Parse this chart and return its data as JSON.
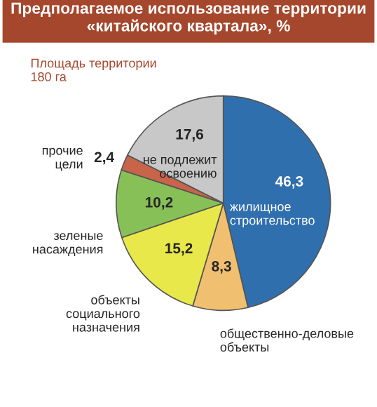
{
  "chart_data": {
    "type": "pie",
    "title": "Предполагаемое использование территории «китайского квартала», %",
    "categories": [
      "жилищное строительство",
      "общественно-деловые объекты",
      "объекты социального назначения",
      "зеленые насаждения",
      "прочие цели",
      "не подлежит освоению"
    ],
    "values": [
      46.3,
      8.3,
      15.2,
      10.2,
      2.4,
      17.6
    ],
    "value_labels": [
      "46,3",
      "8,3",
      "15,2",
      "10,2",
      "2,4",
      "17,6"
    ],
    "colors": [
      "#2f6fae",
      "#f0c070",
      "#e8e84a",
      "#88c058",
      "#c8644a",
      "#c8c8c8"
    ],
    "annotations": [
      "Площадь территории\n180 га"
    ],
    "legend": false
  }
}
